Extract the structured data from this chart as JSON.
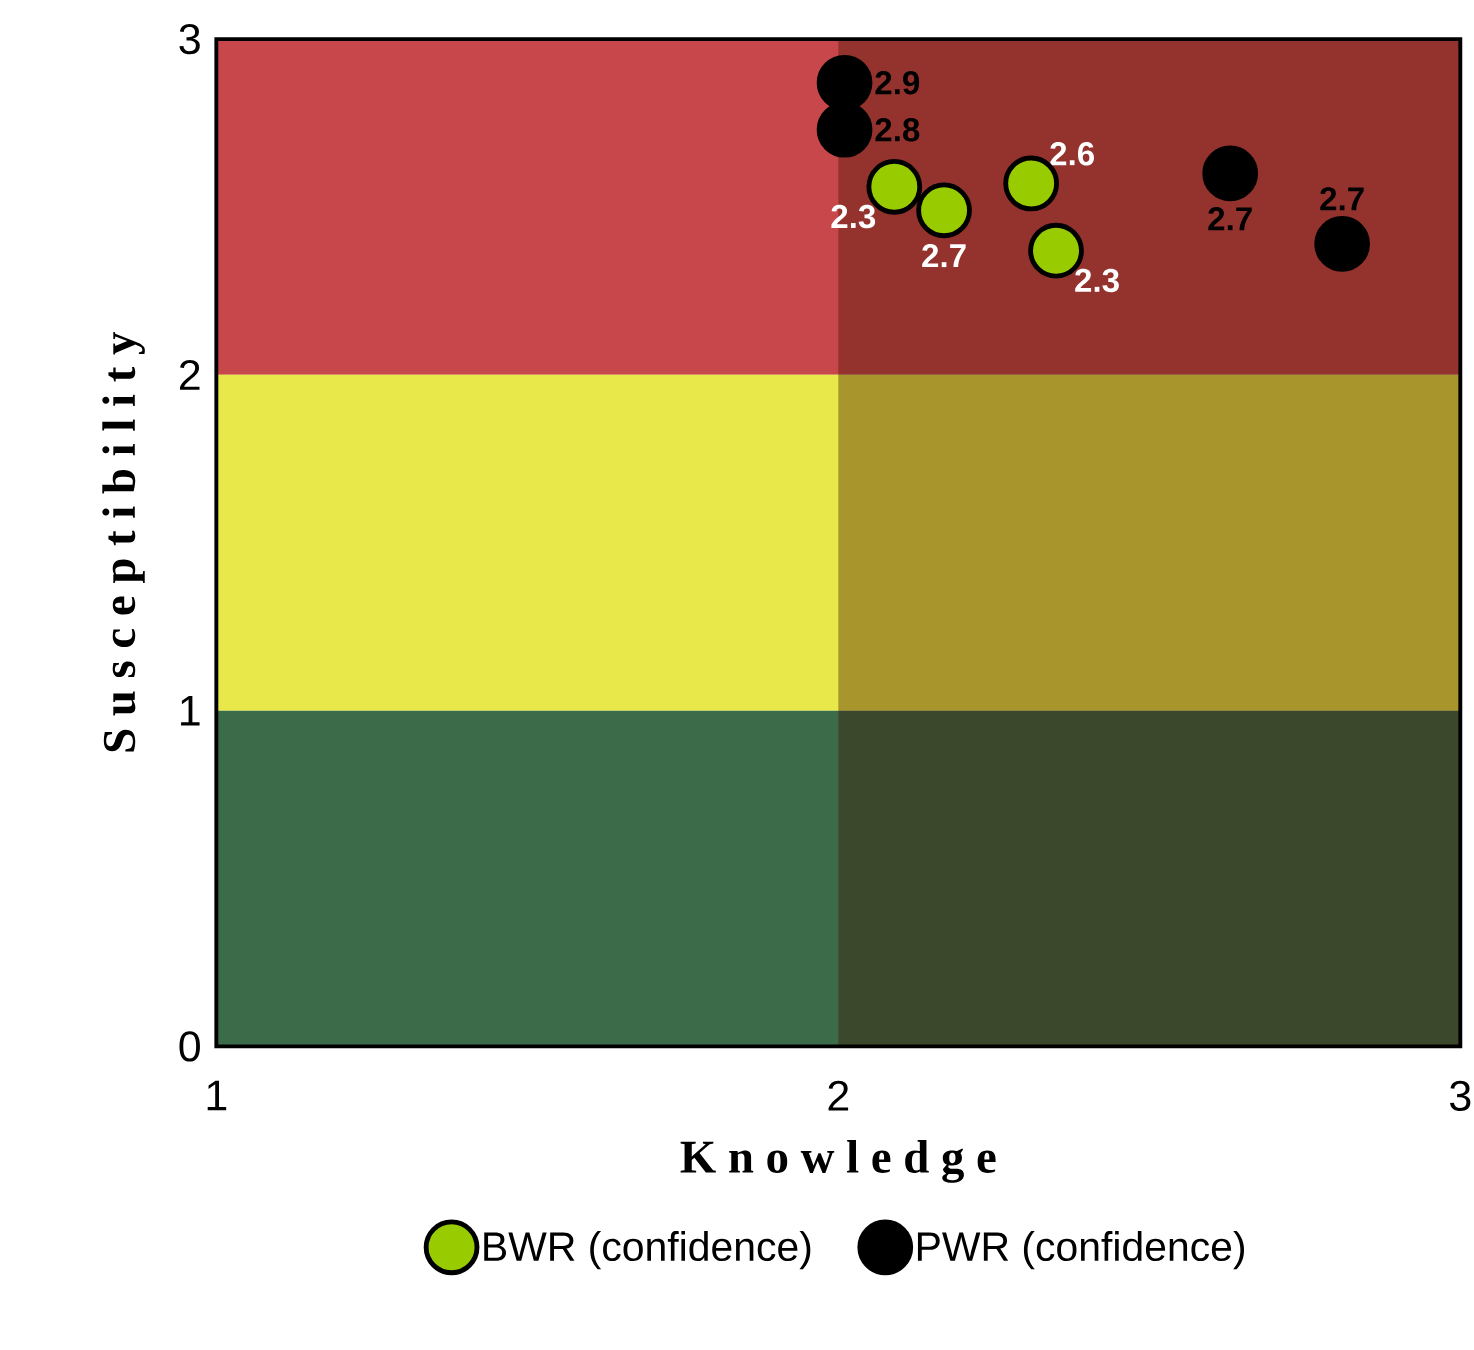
{
  "chart_data": {
    "type": "scatter",
    "xlabel": "K n o w l e d g e",
    "ylabel": "S u s c e p t i b i l i t y",
    "xlim": [
      1,
      3
    ],
    "ylim": [
      0,
      3
    ],
    "xticks": [
      1,
      2,
      3
    ],
    "yticks": [
      0,
      1,
      2,
      3
    ],
    "legend": "bottom",
    "bands": [
      {
        "axis": "y",
        "from": 2,
        "to": 3,
        "color": "#c8474a"
      },
      {
        "axis": "y",
        "from": 1,
        "to": 2,
        "color": "#e8e84a"
      },
      {
        "axis": "y",
        "from": 0,
        "to": 1,
        "color": "#3b6b48"
      },
      {
        "axis": "x",
        "from": 2,
        "to": 3,
        "color": "#401000"
      }
    ],
    "series": [
      {
        "name": "BWR (confidence)",
        "color": "#99cc00",
        "x": [
          2.09,
          2.17,
          2.31,
          2.35
        ],
        "values": [
          2.56,
          2.49,
          2.57,
          2.37
        ]
      },
      {
        "name": "PWR (confidence)",
        "color": "#000000",
        "x": [
          2.01,
          2.01,
          2.63,
          2.81
        ],
        "values": [
          2.87,
          2.73,
          2.6,
          2.39
        ]
      }
    ],
    "annotations": [
      {
        "text": "2.3",
        "x": 2.09,
        "y": 2.56
      },
      {
        "text": "2.7",
        "x": 2.17,
        "y": 2.49
      },
      {
        "text": "2.6",
        "x": 2.31,
        "y": 2.57
      },
      {
        "text": "2.3",
        "x": 2.35,
        "y": 2.37
      },
      {
        "text": "2.9",
        "x": 2.01,
        "y": 2.87
      },
      {
        "text": "2.8",
        "x": 2.01,
        "y": 2.73
      },
      {
        "text": "2.7",
        "x": 2.63,
        "y": 2.6
      },
      {
        "text": "2.7",
        "x": 2.81,
        "y": 2.39
      }
    ]
  }
}
